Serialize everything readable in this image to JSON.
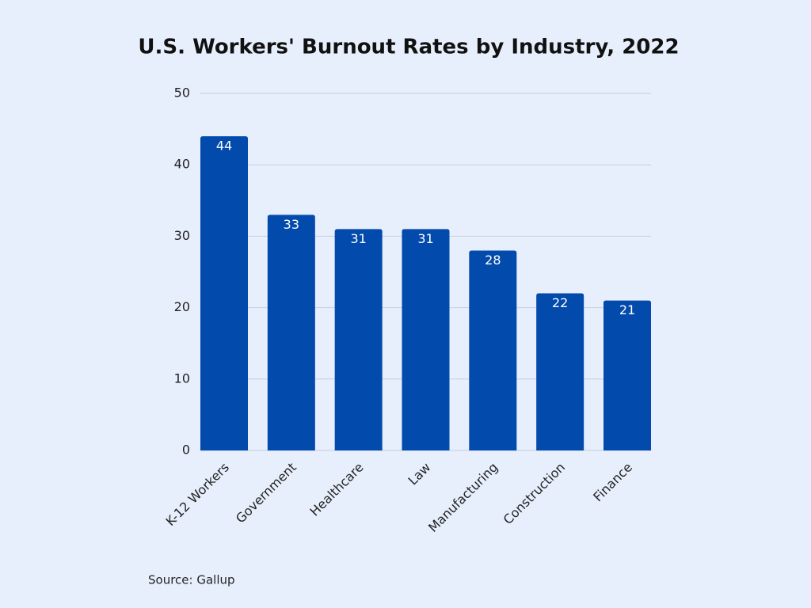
{
  "chart_data": {
    "type": "bar",
    "title": "U.S. Workers' Burnout Rates by Industry, 2022",
    "categories": [
      "K-12 Workers",
      "Government",
      "Healthcare",
      "Law",
      "Manufacturing",
      "Construction",
      "Finance"
    ],
    "values": [
      44,
      33,
      31,
      31,
      28,
      22,
      21
    ],
    "color": "#034aad",
    "ylim": [
      0,
      50
    ],
    "yticks": [
      0,
      10,
      20,
      30,
      40,
      50
    ],
    "grid": true,
    "source": "Source: Gallup"
  }
}
